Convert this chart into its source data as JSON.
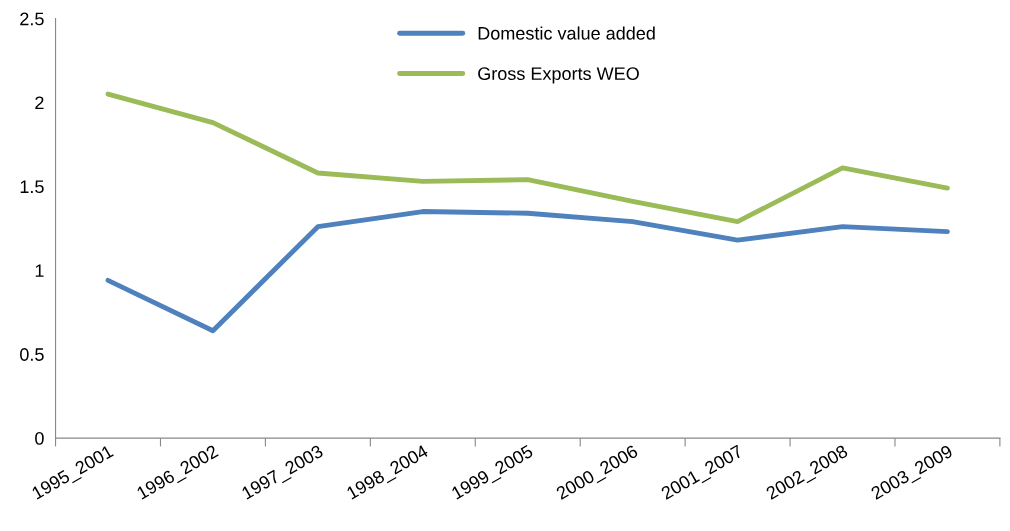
{
  "chart_data": {
    "type": "line",
    "categories": [
      "1995_2001",
      "1996_2002",
      "1997_2003",
      "1998_2004",
      "1999_2005",
      "2000_2006",
      "2001_2007",
      "2002_2008",
      "2003_2009"
    ],
    "series": [
      {
        "name": "Domestic value added",
        "color": "#4f81bd",
        "values": [
          0.94,
          0.64,
          1.26,
          1.35,
          1.34,
          1.29,
          1.18,
          1.26,
          1.23
        ]
      },
      {
        "name": "Gross Exports WEO",
        "color": "#9bbb59",
        "values": [
          2.05,
          1.88,
          1.58,
          1.53,
          1.54,
          1.41,
          1.29,
          1.61,
          1.49
        ]
      }
    ],
    "ylim": [
      0,
      2.5
    ],
    "yticks": [
      0,
      0.5,
      1,
      1.5,
      2,
      2.5
    ],
    "grid": false,
    "legend": "top",
    "marker": "none",
    "line_style": "solid"
  }
}
